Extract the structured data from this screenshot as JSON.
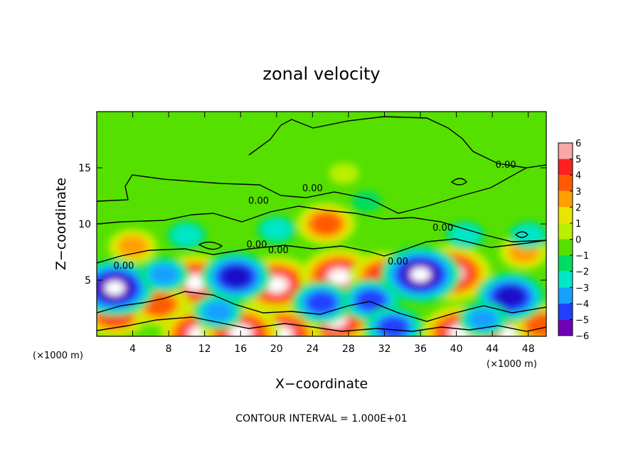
{
  "chart_data": {
    "type": "heatmap",
    "title": "zonal velocity",
    "xlabel": "X−coordinate",
    "ylabel": "Z−coordinate",
    "x_unit_left": "(×1000 m)",
    "x_unit_right": "(×1000 m)",
    "xlim": [
      0,
      50
    ],
    "ylim": [
      0,
      20
    ],
    "xticks": [
      4,
      8,
      12,
      16,
      20,
      24,
      28,
      32,
      36,
      40,
      44,
      48
    ],
    "xtick_labels": [
      "4",
      "8",
      "12",
      "16",
      "20",
      "24",
      "28",
      "32",
      "36",
      "40",
      "44",
      "48"
    ],
    "yticks": [
      5,
      10,
      15
    ],
    "ytick_labels": [
      "5",
      "10",
      "15"
    ],
    "colorbar": {
      "levels": [
        6,
        5,
        4,
        3,
        2,
        1,
        0,
        -1,
        -2,
        -3,
        -4,
        -5,
        -6
      ],
      "labels": [
        "6",
        "5",
        "4",
        "3",
        "2",
        "1",
        "0",
        "−1",
        "−2",
        "−3",
        "−4",
        "−5",
        "−6"
      ],
      "colors": [
        "#f6a8a8",
        "#ff2020",
        "#ff5a00",
        "#ff9f00",
        "#e8e600",
        "#b8f000",
        "#55e000",
        "#00dc60",
        "#00e6c8",
        "#18a0ff",
        "#2040ff",
        "#1e10c8",
        "#7000b8"
      ]
    },
    "contour_labels": [
      {
        "text": "0.00",
        "x": 45.5,
        "z": 15.0
      },
      {
        "text": "0.00",
        "x": 24.0,
        "z": 12.9
      },
      {
        "text": "0.00",
        "x": 18.0,
        "z": 11.8
      },
      {
        "text": "0.00",
        "x": 38.5,
        "z": 9.4
      },
      {
        "text": "0.00",
        "x": 17.8,
        "z": 7.9
      },
      {
        "text": "0.00",
        "x": 20.2,
        "z": 7.4
      },
      {
        "text": "0.00",
        "x": 33.5,
        "z": 6.4
      },
      {
        "text": "0.00",
        "x": 3.0,
        "z": 6.0
      }
    ],
    "features": [
      {
        "kind": "max",
        "x": 11.0,
        "z": 4.8,
        "value": 6
      },
      {
        "kind": "max",
        "x": 20.0,
        "z": 4.6,
        "value": 6
      },
      {
        "kind": "max",
        "x": 27.0,
        "z": 5.3,
        "value": 6
      },
      {
        "kind": "max",
        "x": 39.5,
        "z": 5.6,
        "value": 6
      },
      {
        "kind": "max",
        "x": 26.5,
        "z": 1.5,
        "value": 6
      },
      {
        "kind": "max",
        "x": 2.0,
        "z": 2.1,
        "value": 5
      },
      {
        "kind": "max",
        "x": 7.0,
        "z": 2.8,
        "value": 4
      },
      {
        "kind": "max",
        "x": 32.0,
        "z": 5.3,
        "value": 5
      },
      {
        "kind": "max",
        "x": 4.0,
        "z": 8.0,
        "value": 3
      },
      {
        "kind": "max",
        "x": 25.5,
        "z": 10.0,
        "value": 4
      },
      {
        "kind": "max",
        "x": 47.5,
        "z": 7.5,
        "value": 3
      },
      {
        "kind": "max",
        "x": 11.5,
        "z": 0.2,
        "value": 6
      },
      {
        "kind": "max",
        "x": 20.5,
        "z": 0.2,
        "value": 6
      },
      {
        "kind": "max",
        "x": 40.5,
        "z": 0.3,
        "value": 6
      },
      {
        "kind": "max",
        "x": 46.0,
        "z": 0.2,
        "value": 6
      },
      {
        "kind": "max",
        "x": 16.0,
        "z": 0.3,
        "value": 6
      },
      {
        "kind": "max",
        "x": 49.5,
        "z": 1.0,
        "value": 4
      },
      {
        "kind": "min",
        "x": 2.0,
        "z": 4.3,
        "value": -6
      },
      {
        "kind": "min",
        "x": 15.5,
        "z": 5.3,
        "value": -5
      },
      {
        "kind": "min",
        "x": 25.0,
        "z": 3.0,
        "value": -4
      },
      {
        "kind": "min",
        "x": 36.0,
        "z": 5.5,
        "value": -6
      },
      {
        "kind": "min",
        "x": 46.0,
        "z": 3.5,
        "value": -5
      },
      {
        "kind": "min",
        "x": 43.0,
        "z": 1.5,
        "value": -3
      },
      {
        "kind": "min",
        "x": 30.5,
        "z": 3.2,
        "value": -4
      },
      {
        "kind": "min",
        "x": 7.5,
        "z": 5.5,
        "value": -3
      },
      {
        "kind": "min",
        "x": 33.0,
        "z": 0.8,
        "value": -4
      },
      {
        "kind": "min",
        "x": 13.5,
        "z": 2.2,
        "value": -3
      },
      {
        "kind": "min",
        "x": 10.0,
        "z": 9.0,
        "value": -2
      },
      {
        "kind": "min",
        "x": 20.0,
        "z": 9.5,
        "value": -2
      },
      {
        "kind": "min",
        "x": 41.0,
        "z": 9.0,
        "value": -2
      },
      {
        "kind": "min",
        "x": 30.0,
        "z": 12.0,
        "value": -1
      },
      {
        "kind": "min",
        "x": 48.0,
        "z": 9.0,
        "value": -2
      },
      {
        "kind": "max",
        "x": 27.5,
        "z": 14.5,
        "value": 1
      }
    ]
  },
  "footer": {
    "contour_interval": "CONTOUR INTERVAL = 1.000E+01"
  }
}
